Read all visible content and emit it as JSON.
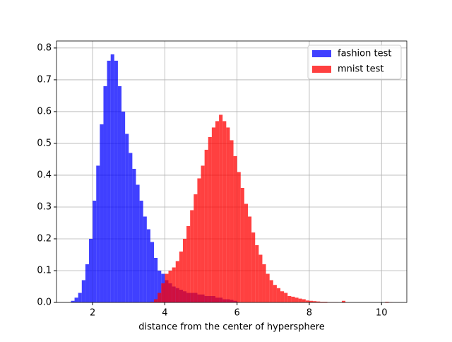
{
  "chart_data": {
    "type": "histogram",
    "xlabel": "distance from the center of hypersphere",
    "xlim": [
      1.0,
      10.7
    ],
    "ylim": [
      0,
      0.822
    ],
    "xticks": [
      2,
      4,
      6,
      8,
      10
    ],
    "yticks": [
      {
        "value": 0,
        "label": "0.0"
      },
      0.1,
      0.2,
      0.3,
      0.4,
      0.5,
      0.6,
      0.7,
      0.8
    ],
    "grid": true,
    "legend": "upper right",
    "series": [
      {
        "name": "fashion test",
        "color": "#0000ff",
        "alpha": 0.75,
        "bins": [
          1.4,
          1.5,
          1.6,
          1.7,
          1.8,
          1.9,
          2.0,
          2.1,
          2.2,
          2.3,
          2.4,
          2.5,
          2.6,
          2.7,
          2.8,
          2.9,
          3.0,
          3.1,
          3.2,
          3.3,
          3.4,
          3.5,
          3.6,
          3.7,
          3.8,
          3.9,
          4.0,
          4.1,
          4.2,
          4.3,
          4.4,
          4.5,
          4.6,
          4.7,
          4.8,
          4.9,
          5.0,
          5.1,
          5.2,
          5.3,
          5.4,
          5.5,
          5.6,
          5.7,
          5.8,
          5.9,
          6.0
        ],
        "values": [
          0.005,
          0.015,
          0.03,
          0.07,
          0.12,
          0.2,
          0.32,
          0.43,
          0.56,
          0.68,
          0.76,
          0.78,
          0.76,
          0.68,
          0.6,
          0.53,
          0.47,
          0.42,
          0.37,
          0.32,
          0.27,
          0.23,
          0.19,
          0.14,
          0.1,
          0.09,
          0.07,
          0.06,
          0.05,
          0.045,
          0.04,
          0.035,
          0.03,
          0.03,
          0.03,
          0.025,
          0.025,
          0.02,
          0.02,
          0.02,
          0.015,
          0.015,
          0.01,
          0.01,
          0.008,
          0.005
        ]
      },
      {
        "name": "mnist test",
        "color": "#ff0000",
        "alpha": 0.75,
        "bins": [
          3.6,
          3.7,
          3.8,
          3.9,
          4.0,
          4.1,
          4.2,
          4.3,
          4.4,
          4.5,
          4.6,
          4.7,
          4.8,
          4.9,
          5.0,
          5.1,
          5.2,
          5.3,
          5.4,
          5.5,
          5.6,
          5.7,
          5.8,
          5.9,
          6.0,
          6.1,
          6.2,
          6.3,
          6.4,
          6.5,
          6.6,
          6.7,
          6.8,
          6.9,
          7.0,
          7.1,
          7.2,
          7.3,
          7.4,
          7.5,
          7.6,
          7.7,
          7.8,
          7.9,
          8.0,
          8.1,
          8.2,
          8.3,
          8.4,
          8.5,
          8.6,
          8.7,
          8.8,
          8.9,
          9.0,
          9.1,
          9.2,
          9.3,
          9.4,
          9.5,
          9.6,
          9.7,
          9.8,
          9.9,
          10.0,
          10.1,
          10.2,
          10.3
        ],
        "values": [
          0.002,
          0.01,
          0.03,
          0.06,
          0.09,
          0.1,
          0.11,
          0.13,
          0.16,
          0.2,
          0.24,
          0.29,
          0.34,
          0.39,
          0.43,
          0.48,
          0.52,
          0.55,
          0.57,
          0.59,
          0.57,
          0.55,
          0.51,
          0.46,
          0.41,
          0.36,
          0.31,
          0.27,
          0.22,
          0.18,
          0.15,
          0.12,
          0.09,
          0.07,
          0.055,
          0.045,
          0.035,
          0.03,
          0.02,
          0.018,
          0.015,
          0.012,
          0.01,
          0.006,
          0.005,
          0.004,
          0.003,
          0.002,
          0.002,
          0.001,
          0.001,
          0.001,
          0,
          0.005,
          0,
          0,
          0,
          0,
          0,
          0,
          0,
          0,
          0,
          0,
          0,
          0.002,
          0.001
        ]
      }
    ]
  }
}
